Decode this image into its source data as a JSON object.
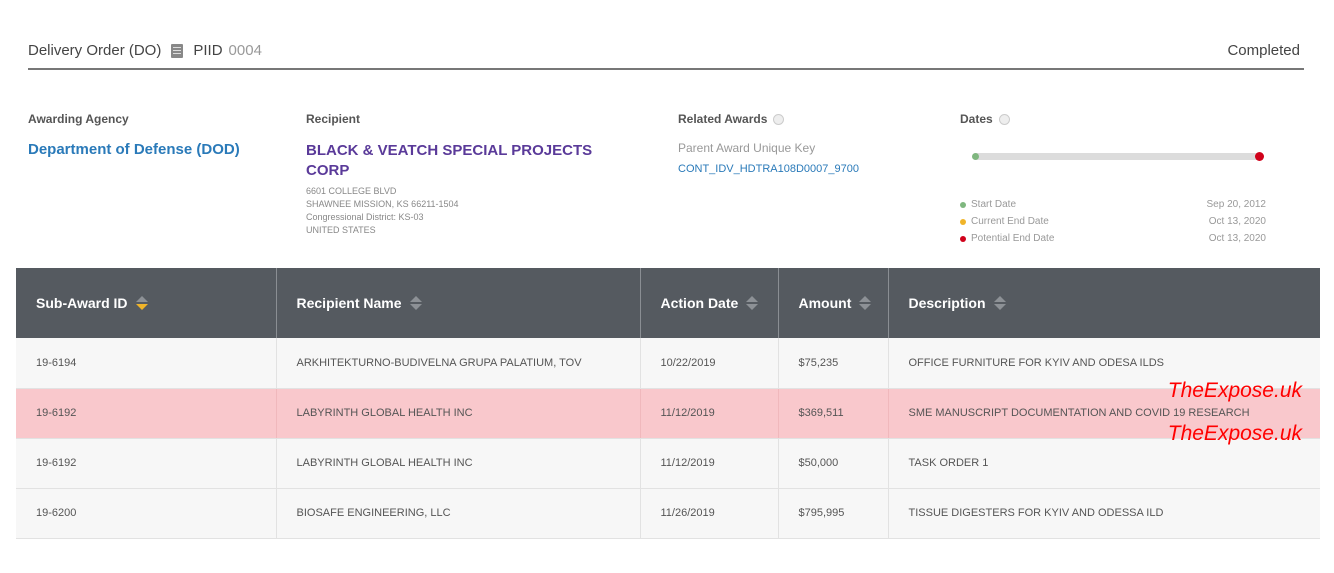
{
  "header": {
    "title": "Delivery Order (DO)",
    "piid_label": "PIID",
    "piid_value": "0004",
    "status": "Completed",
    "doc_icon": "document-icon"
  },
  "awarding_agency": {
    "label": "Awarding Agency",
    "name": "Department of Defense (DOD)"
  },
  "recipient": {
    "label": "Recipient",
    "name": "BLACK & VEATCH SPECIAL PROJECTS CORP",
    "address1": "6601 COLLEGE BLVD",
    "address2": "SHAWNEE MISSION, KS 66211-1504",
    "district": "Congressional District: KS-03",
    "country": "UNITED STATES"
  },
  "related_awards": {
    "label": "Related Awards",
    "parent_label": "Parent Award Unique Key",
    "parent_key": "CONT_IDV_HDTRA108D0007_9700"
  },
  "dates": {
    "label": "Dates",
    "rows": [
      {
        "label": "Start Date",
        "value": "Sep 20, 2012",
        "color": "#7fb77f"
      },
      {
        "label": "Current End Date",
        "value": "Oct 13, 2020",
        "color": "#f0b429"
      },
      {
        "label": "Potential End Date",
        "value": "Oct 13, 2020",
        "color": "#d0021b"
      }
    ]
  },
  "table": {
    "columns": [
      "Sub-Award ID",
      "Recipient Name",
      "Action Date",
      "Amount",
      "Description"
    ],
    "rows": [
      [
        "19-6194",
        "ARKHITEKTURNO-BUDIVELNA GRUPA PALATIUM, TOV",
        "10/22/2019",
        "$75,235",
        "OFFICE FURNITURE FOR KYIV AND ODESA ILDS"
      ],
      [
        "19-6192",
        "LABYRINTH GLOBAL HEALTH INC",
        "11/12/2019",
        "$369,511",
        "SME MANUSCRIPT DOCUMENTATION AND COVID 19 RESEARCH"
      ],
      [
        "19-6192",
        "LABYRINTH GLOBAL HEALTH INC",
        "11/12/2019",
        "$50,000",
        "TASK ORDER 1"
      ],
      [
        "19-6200",
        "BIOSAFE ENGINEERING, LLC",
        "11/26/2019",
        "$795,995",
        "TISSUE DIGESTERS FOR KYIV AND ODESSA ILD"
      ]
    ],
    "highlight_color": "#f9c8cc"
  },
  "watermark": {
    "text1": "TheExpose.uk",
    "text2": "TheExpose.uk",
    "color": "#ff0000"
  }
}
